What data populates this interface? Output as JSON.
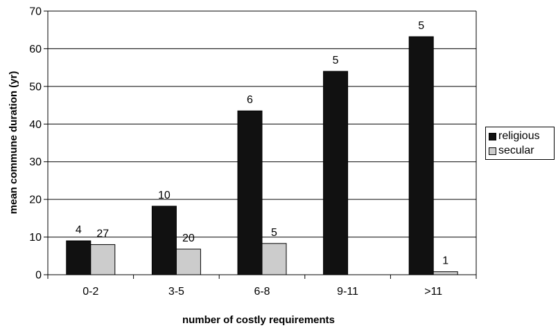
{
  "chart_data": {
    "type": "bar",
    "title": "",
    "xlabel": "number of costly requirements",
    "ylabel": "mean commune duration (yr)",
    "categories": [
      "0-2",
      "3-5",
      "6-8",
      "9-11",
      ">11"
    ],
    "ylim": [
      0,
      70
    ],
    "yticks": [
      "0",
      "10",
      "20",
      "30",
      "40",
      "50",
      "60",
      "70"
    ],
    "grid": true,
    "legend_position": "right",
    "series": [
      {
        "name": "religious",
        "color": "#111111",
        "values": [
          9,
          18.2,
          43.5,
          54,
          63.2
        ],
        "data_labels": [
          "4",
          "10",
          "6",
          "5",
          "5"
        ]
      },
      {
        "name": "secular",
        "color": "#cccccc",
        "values": [
          8,
          6.8,
          8.3,
          null,
          0.8
        ],
        "data_labels": [
          "27",
          "20",
          "5",
          "",
          "1"
        ]
      }
    ]
  }
}
